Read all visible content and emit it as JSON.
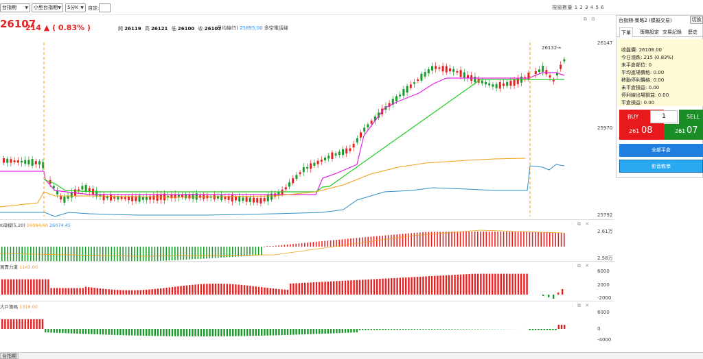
{
  "toolbar": {
    "product": "台指期",
    "period_type": "小型台指期",
    "interval": "5分K",
    "auto_label": "自定:",
    "window_count": "視窗數量 1 2 3 4 5 6"
  },
  "quote": {
    "last": "26107",
    "change": "214 ▲ ( 0.83% )",
    "open_label": "開",
    "open": "26119",
    "high_label": "高",
    "high": "26121",
    "low_label": "低",
    "low": "26100",
    "close_label": "收",
    "close": "26107",
    "ma_label": "日均線(5)",
    "ma_value": "25895.00",
    "ma_note": "多空電話線"
  },
  "main_chart": {
    "y_ticks": [
      "26147",
      "25970",
      "25792"
    ],
    "high_marker": "26132→"
  },
  "indicators": [
    {
      "label": "K母線(5,20)",
      "v1": "26084.60",
      "v2": "26074.45",
      "y_ticks": [
        "2.61万",
        "2.58万"
      ]
    },
    {
      "label": "買賣力道",
      "v1": "1143.00",
      "y_ticks": [
        "6000",
        "2000",
        "-2000"
      ]
    },
    {
      "label": "大戶籌碼",
      "v1": "1318.00",
      "y_ticks": [
        "6000",
        "0",
        "-4000"
      ]
    }
  ],
  "panel": {
    "title": "台指期-策略2 (模擬交易)",
    "switch_label": "切換",
    "tabs": [
      "下單",
      "策略設定",
      "交易記錄",
      "歷史回"
    ],
    "info": [
      "收盤價: 26108.00",
      "今日漲跌: 215 (0.83%)",
      "未平倉部位: 0",
      "平均進場價格: 0.00",
      "移動停利價格: 0.00",
      "未平倉損益: 0.00",
      "停利線出場損益: 0.00",
      "平倉損益: 0.00"
    ],
    "buy_label": "BUY",
    "sell_label": "SELL",
    "qty": "1",
    "bid_prefix": "261",
    "bid_suffix": "08",
    "ask_prefix": "261",
    "ask_suffix": "07",
    "close_all": "全部平倉",
    "tutorial": "影音教學"
  },
  "footer_tab": "台指期",
  "colors": {
    "up": "#e52222",
    "down": "#1a9a2a",
    "accent": "#1e7fe0"
  }
}
